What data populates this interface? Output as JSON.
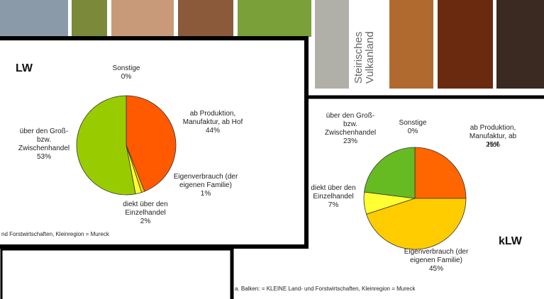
{
  "banner": "Steirisches\nVulkanland",
  "chart_data": [
    {
      "type": "pie",
      "title": "LW",
      "categories": [
        "Sonstige",
        "ab Produktion,\nManufaktur, ab Hof",
        "Eigenverbrauch (der\neigenen Familie)",
        "diekt über den\nEinzelhandel",
        "über den Groß-\nbzw.\nZwischenhandel"
      ],
      "values": [
        0,
        44,
        1,
        2,
        53
      ],
      "value_labels": [
        "0%",
        "44%",
        "1%",
        "2%",
        "53%"
      ],
      "colors": [
        "#999999",
        "#ff5a00",
        "#ffcc00",
        "#ffff33",
        "#99cc00"
      ],
      "footnote": "nd Forstwirtschaften, Kleinregion = Mureck"
    },
    {
      "type": "pie",
      "title": "kLW",
      "categories": [
        "Sonstige",
        "ab Produktion,\nManufaktur, ab Hof",
        "Eigenverbrauch (der\neigenen Familie)",
        "diekt über den\nEinzelhandel",
        "über den Groß-\nbzw.\nZwischenhandel"
      ],
      "values": [
        0,
        25,
        45,
        7,
        23
      ],
      "value_labels": [
        "0%",
        "25%",
        "45%",
        "7%",
        "23%"
      ],
      "colors": [
        "#999999",
        "#ff6600",
        "#ffcc00",
        "#ffff33",
        "#66bb22"
      ],
      "footnote": "a. Balken: = KLEINE Land- und Forstwirtschaften, Kleinregion = Mureck"
    }
  ]
}
